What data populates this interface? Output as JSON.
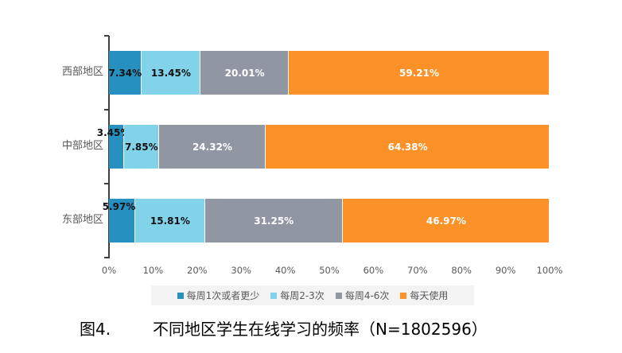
{
  "chart_data": {
    "type": "bar",
    "orientation": "horizontal",
    "stacked": "percent",
    "title": "图4.　不同地区学生在线学习的频率（N=1802596）",
    "categories": [
      "西部地区",
      "中部地区",
      "东部地区"
    ],
    "series": [
      {
        "name": "每周1次或者更少",
        "color": "#2690c0",
        "values": [
          7.34,
          3.45,
          5.97
        ],
        "labels": [
          "7.34%",
          "3.45%",
          "5.97%"
        ]
      },
      {
        "name": "每周2-3次",
        "color": "#82d3ea",
        "values": [
          13.45,
          7.85,
          15.81
        ],
        "labels": [
          "13.45%",
          "7.85%",
          "15.81%"
        ]
      },
      {
        "name": "每周4-6次",
        "color": "#9097a3",
        "values": [
          20.01,
          24.32,
          31.25
        ],
        "labels": [
          "20.01%",
          "24.32%",
          "31.25%"
        ]
      },
      {
        "name": "每天使用",
        "color": "#fb9127",
        "values": [
          59.21,
          64.38,
          46.97
        ],
        "labels": [
          "59.21%",
          "64.38%",
          "46.97%"
        ]
      }
    ],
    "xlabel": "",
    "ylabel": "",
    "xlim": [
      0,
      100
    ],
    "x_ticks": [
      "0%",
      "10%",
      "20%",
      "30%",
      "40%",
      "50%",
      "60%",
      "70%",
      "80%",
      "90%",
      "100%"
    ],
    "grid": false,
    "legend_position": "bottom"
  },
  "caption": {
    "figure_no": "图4.",
    "text": "不同地区学生在线学习的频率（N=1802596）"
  },
  "legend": [
    {
      "label": "每周1次或者更少",
      "color": "#2690c0"
    },
    {
      "label": "每周2-3次",
      "color": "#82d3ea"
    },
    {
      "label": "每周4-6次",
      "color": "#9097a3"
    },
    {
      "label": "每天使用",
      "color": "#fb9127"
    }
  ]
}
